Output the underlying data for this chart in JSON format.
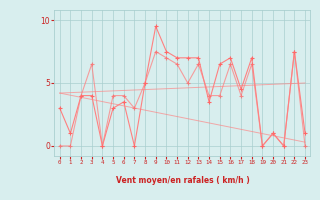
{
  "x": [
    0,
    1,
    2,
    3,
    4,
    5,
    6,
    7,
    8,
    9,
    10,
    11,
    12,
    13,
    14,
    15,
    16,
    17,
    18,
    19,
    20,
    21,
    22,
    23
  ],
  "wind_mean": [
    3,
    1,
    4,
    4,
    0,
    3,
    3.5,
    0,
    5,
    9.5,
    7.5,
    7,
    7,
    7,
    3.5,
    6.5,
    7,
    4.5,
    7,
    0,
    1,
    0,
    7.5,
    1
  ],
  "wind_gust": [
    0,
    0,
    4,
    6.5,
    0,
    4,
    4,
    3,
    5,
    7.5,
    7,
    6.5,
    5,
    6.5,
    4,
    4,
    6.5,
    4,
    6.5,
    0,
    1,
    0,
    7.5,
    0
  ],
  "trend1_x": [
    0,
    23
  ],
  "trend1_y": [
    4.2,
    5.0
  ],
  "trend2_x": [
    0,
    23
  ],
  "trend2_y": [
    4.2,
    0.3
  ],
  "bg_color": "#d8eeee",
  "line_color": "#ff8080",
  "marker_color": "#ff6666",
  "grid_color": "#aacfcf",
  "axis_color": "#cc2222",
  "tick_color": "#cc2222",
  "xlabel": "Vent moyen/en rafales ( km/h )",
  "yticks": [
    0,
    5,
    10
  ],
  "xticks": [
    0,
    1,
    2,
    3,
    4,
    5,
    6,
    7,
    8,
    9,
    10,
    11,
    12,
    13,
    14,
    15,
    16,
    17,
    18,
    19,
    20,
    21,
    22,
    23
  ],
  "ylim": [
    -0.8,
    10.8
  ],
  "xlim": [
    -0.5,
    23.5
  ]
}
